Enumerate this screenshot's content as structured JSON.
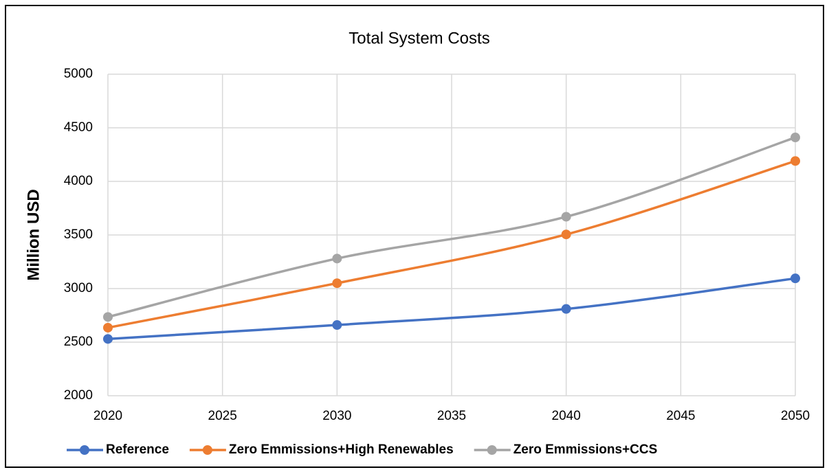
{
  "chart_data": {
    "type": "line",
    "title": "Total System Costs",
    "y_label": "Million USD",
    "x": [
      2020,
      2030,
      2040,
      2050
    ],
    "series": [
      {
        "name": "Reference",
        "color": "#4472c4",
        "values": [
          2530,
          2660,
          2810,
          3095
        ]
      },
      {
        "name": "Zero Emmissions+High Renewables",
        "color": "#ed7d31",
        "values": [
          2635,
          3050,
          3505,
          4190
        ]
      },
      {
        "name": "Zero Emmissions+CCS",
        "color": "#a5a5a5",
        "values": [
          2735,
          3280,
          3670,
          4410
        ]
      }
    ],
    "xlim": [
      2020,
      2050
    ],
    "xticks": [
      2020,
      2025,
      2030,
      2035,
      2040,
      2045,
      2050
    ],
    "ylim": [
      2000,
      5000
    ],
    "yticks": [
      2000,
      2500,
      3000,
      3500,
      4000,
      4500,
      5000
    ],
    "grid": true,
    "smooth": true,
    "legend": "bottom"
  }
}
